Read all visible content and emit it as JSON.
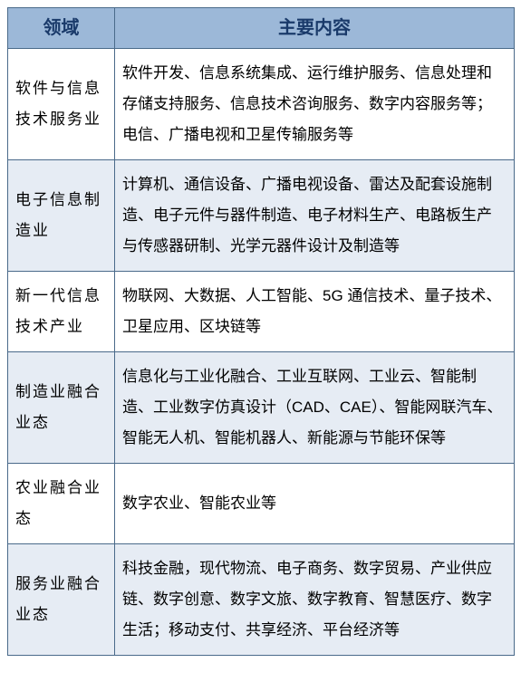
{
  "table": {
    "header_bg": "#9cb8d8",
    "row_bg_odd": "#ffffff",
    "row_bg_even": "#e6ecf4",
    "border_color": "#4a6a8a",
    "header_text_color": "#1a3a6a",
    "columns": [
      "领域",
      "主要内容"
    ],
    "rows": [
      {
        "domain": "软件与信息技术服务业",
        "content": "软件开发、信息系统集成、运行维护服务、信息处理和存储支持服务、信息技术咨询服务、数字内容服务等；电信、广播电视和卫星传输服务等"
      },
      {
        "domain": "电子信息制造业",
        "content": "计算机、通信设备、广播电视设备、雷达及配套设施制造、电子元件与器件制造、电子材料生产、电路板生产与传感器研制、光学元器件设计及制造等"
      },
      {
        "domain": "新一代信息技术产业",
        "content": "物联网、大数据、人工智能、5G 通信技术、量子技术、卫星应用、区块链等"
      },
      {
        "domain": "制造业融合业态",
        "content": "信息化与工业化融合、工业互联网、工业云、智能制造、工业数字仿真设计（CAD、CAE）、智能网联汽车、智能无人机、智能机器人、新能源与节能环保等"
      },
      {
        "domain": "农业融合业态",
        "content": "数字农业、智能农业等"
      },
      {
        "domain": "服务业融合业态",
        "content": "科技金融，现代物流、电子商务、数字贸易、产业供应链、数字创意、数字文旅、数字教育、智慧医疗、数字生活；移动支付、共享经济、平台经济等"
      }
    ]
  }
}
